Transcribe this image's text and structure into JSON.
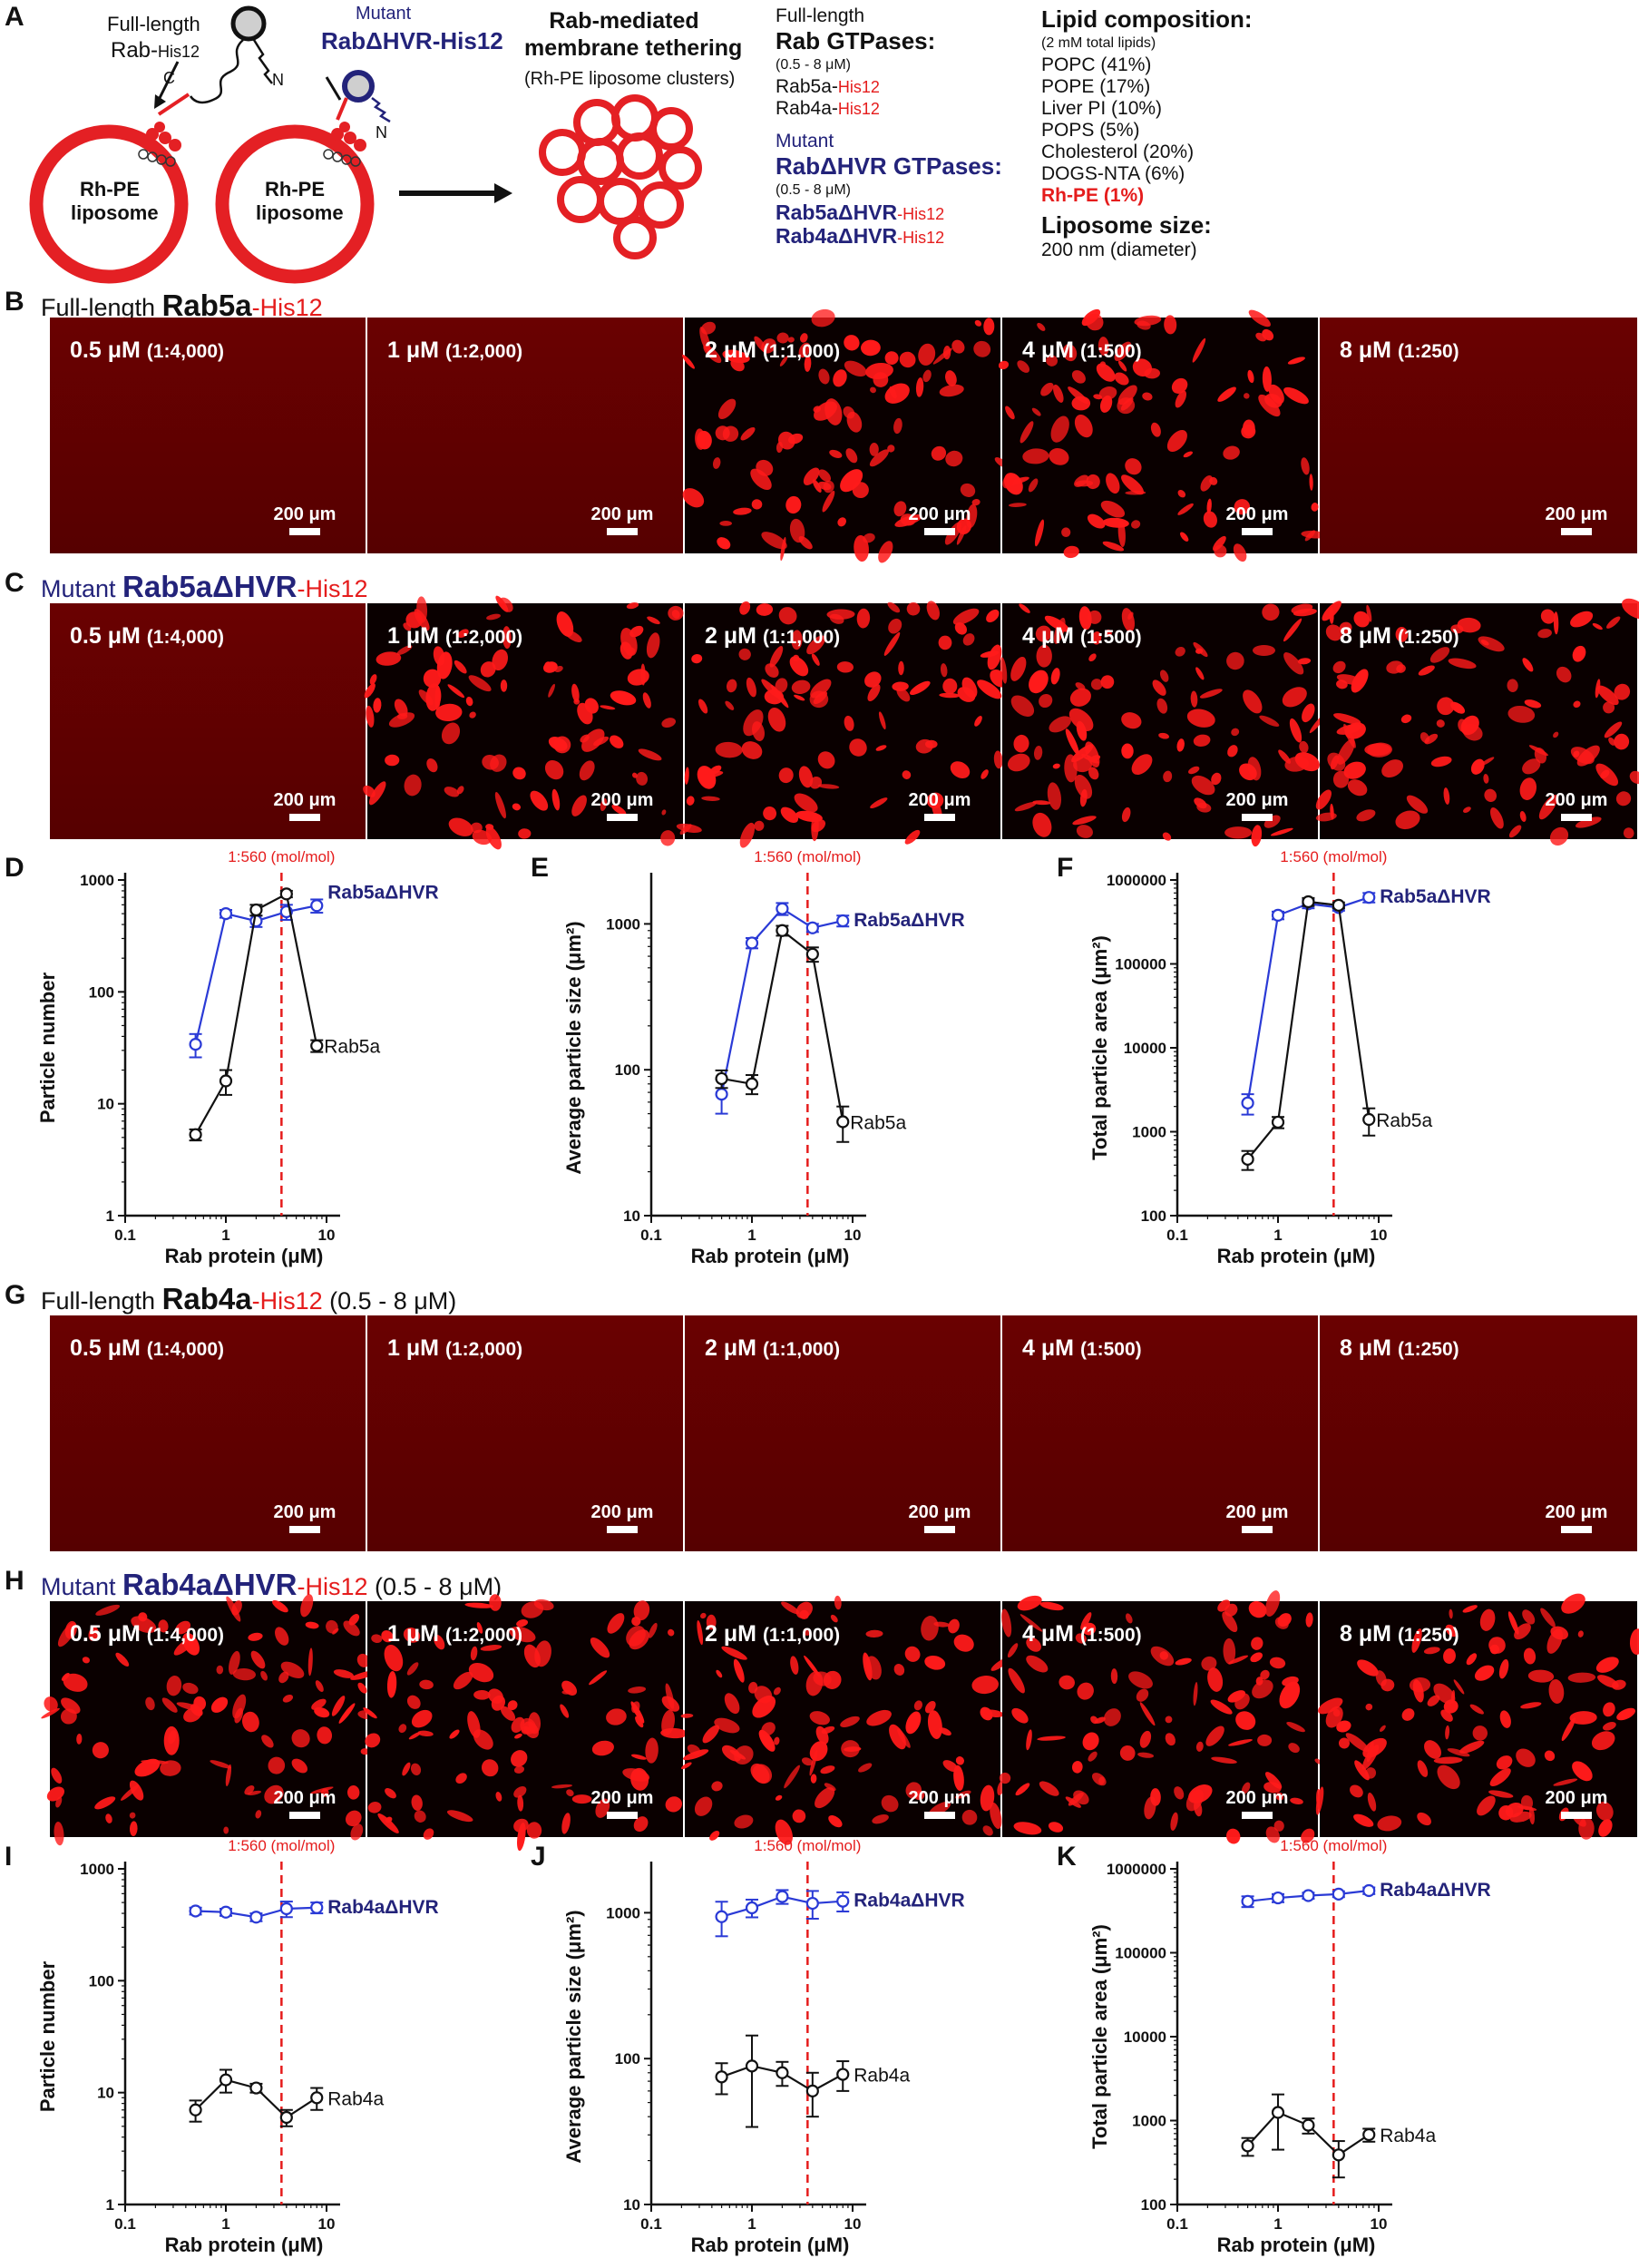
{
  "panelA": {
    "letter": "A",
    "fulllength_label": "Full-length",
    "rab_label": "Rab-",
    "his12": "His12",
    "mutant_label": "Mutant",
    "rabdhvr_label": "RabΔHVR-His12",
    "c_term": "C",
    "n_term": "N",
    "liposome_line1": "Rh-PE",
    "liposome_line2": "liposome",
    "tether_title1": "Rab-mediated",
    "tether_title2": "membrane tethering",
    "tether_sub": "(Rh-PE liposome clusters)",
    "rab_block": {
      "l1": "Full-length",
      "l2": "Rab GTPases:",
      "l3": "(0.5 - 8 μM)",
      "l4a": "Rab5a-",
      "l4b": "His12",
      "l5a": "Rab4a-",
      "l5b": "His12",
      "m1": "Mutant",
      "m2": "RabΔHVR GTPases:",
      "m3": "(0.5 - 8 μM)",
      "m4a": "Rab5aΔHVR",
      "m4b": "-His12",
      "m5a": "Rab4aΔHVR",
      "m5b": "-His12"
    },
    "lipid_block": {
      "title": "Lipid composition:",
      "sub": "(2 mM  total lipids)",
      "items": [
        "POPC (41%)",
        "POPE (17%)",
        "Liver PI (10%)",
        "POPS (5%)",
        "Cholesterol (20%)",
        "DOGS-NTA (6%)"
      ],
      "rhpe": "Rh-PE (1%)",
      "size_title": "Liposome size:",
      "size_val": "200 nm (diameter)"
    }
  },
  "rows": [
    {
      "letter": "B",
      "prefix": "Full-length ",
      "name": "Rab5a",
      "suffix": "-His12",
      "range": "",
      "name_color": "#111111",
      "prefix_color": "#111111"
    },
    {
      "letter": "C",
      "prefix": "Mutant ",
      "name": "Rab5aΔHVR",
      "suffix": "-His12",
      "range": "",
      "name_color": "#23237a",
      "prefix_color": "#23237a"
    },
    {
      "letter": "G",
      "prefix": "Full-length ",
      "name": "Rab4a",
      "suffix": "-His12",
      "range": " (0.5 - 8 μM)",
      "name_color": "#111111",
      "prefix_color": "#111111"
    },
    {
      "letter": "H",
      "prefix": "Mutant ",
      "name": "Rab4aΔHVR",
      "suffix": "-His12",
      "range": " (0.5 - 8 μM)",
      "name_color": "#23237a",
      "prefix_color": "#23237a"
    }
  ],
  "tile_labels": [
    {
      "conc": "0.5 μM",
      "ratio": "(1:4,000)"
    },
    {
      "conc": "1 μM",
      "ratio": "(1:2,000)"
    },
    {
      "conc": "2 μM",
      "ratio": "(1:1,000)"
    },
    {
      "conc": "4 μM",
      "ratio": "(1:500)"
    },
    {
      "conc": "8 μM",
      "ratio": "(1:250)"
    }
  ],
  "scale_bar": "200 μm",
  "tile_states": {
    "B": [
      "dim",
      "dim",
      "on",
      "on",
      "dim"
    ],
    "C": [
      "dim",
      "on",
      "on",
      "on",
      "on"
    ],
    "G": [
      "dim",
      "dim",
      "dim",
      "dim",
      "dim"
    ],
    "H": [
      "on",
      "on",
      "on",
      "on",
      "on"
    ]
  },
  "chart_data": [
    {
      "panel": "D",
      "type": "line",
      "xlabel": "Rab protein (μM)",
      "ylabel": "Particle number",
      "xscale": "log",
      "yscale": "log",
      "xlim": [
        0.1,
        10
      ],
      "ylim": [
        1,
        1000
      ],
      "xticks": [
        "0.1",
        "1",
        "10"
      ],
      "yticks": [
        "1",
        "10",
        "100",
        "1000"
      ],
      "vline": {
        "x": 3.57,
        "label": "1:560 (mol/mol)"
      },
      "series": [
        {
          "name": "Rab5aΔHVR",
          "color": "#2a3ad6",
          "x": [
            0.5,
            1,
            2,
            4,
            8
          ],
          "y": [
            34,
            500,
            430,
            520,
            590
          ],
          "err": [
            8,
            40,
            50,
            80,
            80
          ]
        },
        {
          "name": "Rab5a",
          "color": "#111111",
          "x": [
            0.5,
            1,
            2,
            4,
            8
          ],
          "y": [
            5.3,
            16,
            540,
            750,
            33
          ],
          "err": [
            0.6,
            4,
            60,
            50,
            4
          ]
        }
      ]
    },
    {
      "panel": "E",
      "type": "line",
      "xlabel": "Rab protein (μM)",
      "ylabel": "Average particle size (μm²)",
      "xscale": "log",
      "yscale": "log",
      "xlim": [
        0.1,
        10
      ],
      "ylim": [
        10,
        2000
      ],
      "xticks": [
        "0.1",
        "1",
        "10"
      ],
      "yticks": [
        "10",
        "100",
        "1000"
      ],
      "vline": {
        "x": 3.57,
        "label": "1:560 (mol/mol)"
      },
      "series": [
        {
          "name": "Rab5aΔHVR",
          "color": "#2a3ad6",
          "x": [
            0.5,
            1,
            2,
            4,
            8
          ],
          "y": [
            68,
            740,
            1270,
            940,
            1050
          ],
          "err": [
            18,
            60,
            120,
            60,
            90
          ]
        },
        {
          "name": "Rab5a",
          "color": "#111111",
          "x": [
            0.5,
            1,
            2,
            4,
            8
          ],
          "y": [
            87,
            80,
            900,
            620,
            44
          ],
          "err": [
            12,
            12,
            70,
            70,
            12
          ]
        }
      ]
    },
    {
      "panel": "F",
      "type": "line",
      "xlabel": "Rab protein (μM)",
      "ylabel": "Total particle area (μm²)",
      "xscale": "log",
      "yscale": "log",
      "xlim": [
        0.1,
        10
      ],
      "ylim": [
        100,
        1000000
      ],
      "xticks": [
        "0.1",
        "1",
        "10"
      ],
      "yticks": [
        "100",
        "1000",
        "10000",
        "100000",
        "1000000"
      ],
      "vline": {
        "x": 3.57,
        "label": "1:560 (mol/mol)"
      },
      "series": [
        {
          "name": "Rab5aΔHVR",
          "color": "#2a3ad6",
          "x": [
            0.5,
            1,
            2,
            4,
            8
          ],
          "y": [
            2200,
            380000,
            520000,
            470000,
            620000
          ],
          "err": [
            600,
            40000,
            60000,
            40000,
            80000
          ]
        },
        {
          "name": "Rab5a",
          "color": "#111111",
          "x": [
            0.5,
            1,
            2,
            4,
            8
          ],
          "y": [
            470,
            1300,
            550000,
            500000,
            1400
          ],
          "err": [
            120,
            200,
            60000,
            40000,
            500
          ]
        }
      ]
    },
    {
      "panel": "I",
      "type": "line",
      "xlabel": "Rab protein (μM)",
      "ylabel": "Particle number",
      "xscale": "log",
      "yscale": "log",
      "xlim": [
        0.1,
        10
      ],
      "ylim": [
        1,
        1000
      ],
      "xticks": [
        "0.1",
        "1",
        "10"
      ],
      "yticks": [
        "1",
        "10",
        "100",
        "1000"
      ],
      "vline": {
        "x": 3.57,
        "label": "1:560 (mol/mol)"
      },
      "series": [
        {
          "name": "Rab4aΔHVR",
          "color": "#2a3ad6",
          "x": [
            0.5,
            1,
            2,
            4,
            8
          ],
          "y": [
            420,
            410,
            370,
            440,
            450
          ],
          "err": [
            30,
            30,
            30,
            70,
            50
          ]
        },
        {
          "name": "Rab4a",
          "color": "#111111",
          "x": [
            0.5,
            1,
            2,
            4,
            8
          ],
          "y": [
            7,
            13,
            11,
            6,
            9
          ],
          "err": [
            1.5,
            3,
            1,
            1,
            2
          ]
        }
      ]
    },
    {
      "panel": "J",
      "type": "line",
      "xlabel": "Rab protein (μM)",
      "ylabel": "Average particle size (μm²)",
      "xscale": "log",
      "yscale": "log",
      "xlim": [
        0.1,
        10
      ],
      "ylim": [
        10,
        2000
      ],
      "xticks": [
        "0.1",
        "1",
        "10"
      ],
      "yticks": [
        "10",
        "100",
        "1000"
      ],
      "vline": {
        "x": 3.57,
        "label": "1:560 (mol/mol)"
      },
      "series": [
        {
          "name": "Rab4aΔHVR",
          "color": "#2a3ad6",
          "x": [
            0.5,
            1,
            2,
            4,
            8
          ],
          "y": [
            940,
            1080,
            1290,
            1160,
            1200
          ],
          "err": [
            250,
            150,
            140,
            250,
            180
          ]
        },
        {
          "name": "Rab4a",
          "color": "#111111",
          "x": [
            0.5,
            1,
            2,
            4,
            8
          ],
          "y": [
            75,
            89,
            80,
            60,
            78
          ],
          "err": [
            18,
            55,
            15,
            20,
            18
          ]
        }
      ]
    },
    {
      "panel": "K",
      "type": "line",
      "xlabel": "Rab protein (μM)",
      "ylabel": "Total particle area (μm²)",
      "xscale": "log",
      "yscale": "log",
      "xlim": [
        0.1,
        10
      ],
      "ylim": [
        100,
        1000000
      ],
      "xticks": [
        "0.1",
        "1",
        "10"
      ],
      "yticks": [
        "100",
        "1000",
        "10000",
        "100000",
        "1000000"
      ],
      "vline": {
        "x": 3.57,
        "label": "1:560 (mol/mol)"
      },
      "series": [
        {
          "name": "Rab4aΔHVR",
          "color": "#2a3ad6",
          "x": [
            0.5,
            1,
            2,
            4,
            8
          ],
          "y": [
            410000,
            450000,
            480000,
            500000,
            550000
          ],
          "err": [
            60000,
            50000,
            40000,
            40000,
            50000
          ]
        },
        {
          "name": "Rab4a",
          "color": "#111111",
          "x": [
            0.5,
            1,
            2,
            4,
            8
          ],
          "y": [
            500,
            1250,
            880,
            390,
            680
          ],
          "err": [
            120,
            800,
            180,
            180,
            120
          ]
        }
      ]
    }
  ],
  "colors": {
    "liposome": "#e42024",
    "navy": "#23237a",
    "blue_series": "#2a3ad6",
    "dashed_line": "#e51c1c",
    "micro_dark": "#5e0000",
    "micro_blob": "#ff1a1a"
  }
}
